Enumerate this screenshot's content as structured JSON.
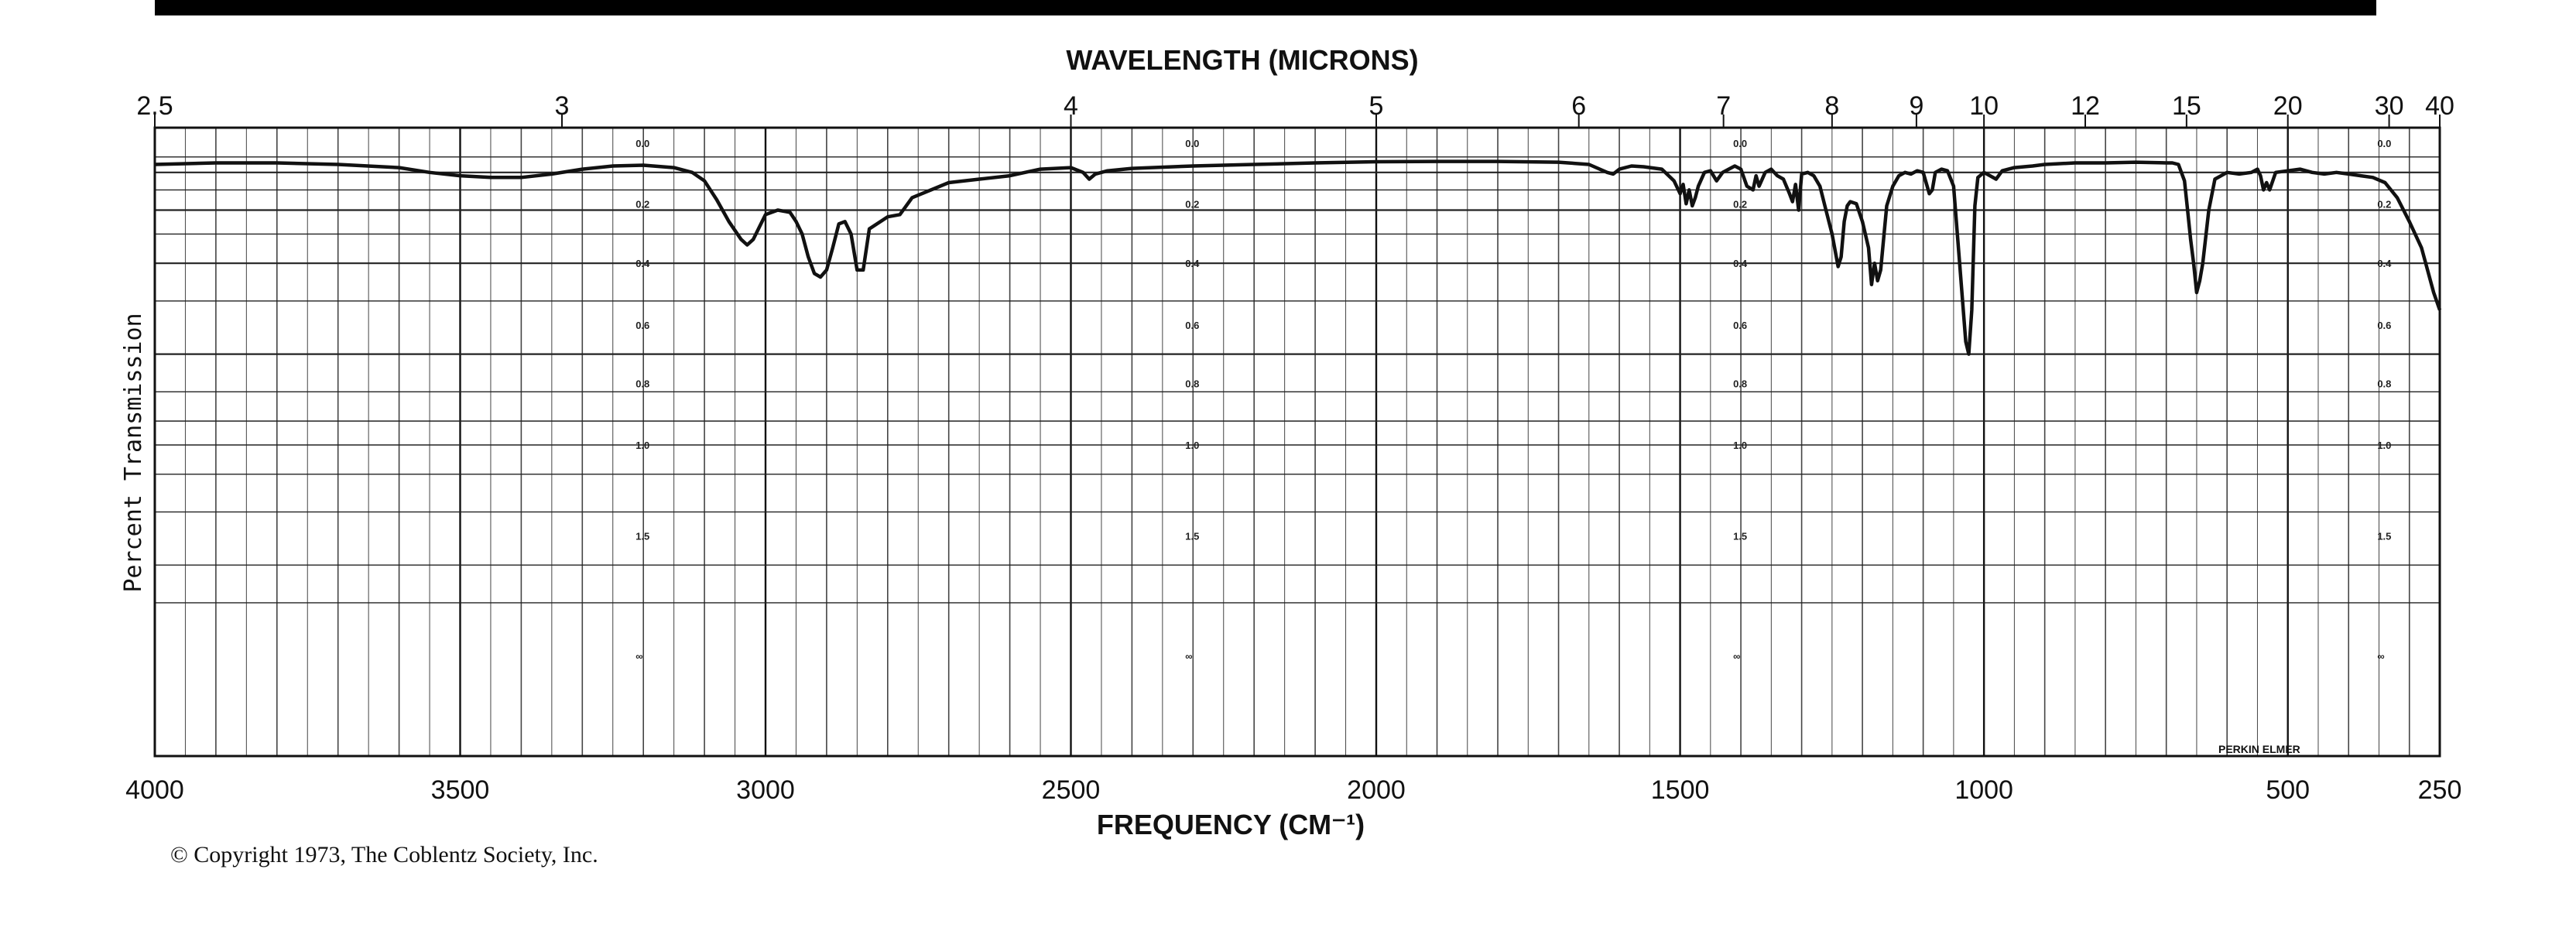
{
  "chart_data": {
    "type": "line",
    "title": "WAVELENGTH (MICRONS)",
    "xlabel": "FREQUENCY (CM⁻¹)",
    "ylabel": "Percent Transmission",
    "x_reversed": true,
    "frequency_ticks": [
      "4000",
      "3500",
      "3000",
      "2500",
      "2000",
      "1500",
      "1000",
      "500",
      "250"
    ],
    "wavelength_ticks": [
      "2.5",
      "3",
      "4",
      "5",
      "6",
      "7",
      "8",
      "9",
      "10",
      "12",
      "15",
      "20",
      "30",
      "40"
    ],
    "absorbance_ticks": [
      "0.0",
      "0.2",
      "0.4",
      "0.6",
      "0.8",
      "1.0",
      "1.5",
      "∞"
    ],
    "grid": true,
    "series": [
      {
        "x": [
          4000,
          3900,
          3800,
          3700,
          3600,
          3550,
          3500,
          3450,
          3400,
          3350,
          3300,
          3250,
          3200,
          3150,
          3120,
          3100,
          3080,
          3060,
          3040,
          3030,
          3020,
          3000,
          2980,
          2960,
          2950,
          2940,
          2930,
          2920,
          2910,
          2900,
          2890,
          2880,
          2870,
          2860,
          2850,
          2840,
          2830,
          2800,
          2780,
          2760,
          2700,
          2650,
          2600,
          2550,
          2500,
          2480,
          2470,
          2460,
          2440,
          2400,
          2300,
          2200,
          2100,
          2000,
          1900,
          1800,
          1700,
          1650,
          1620,
          1610,
          1600,
          1580,
          1560,
          1530,
          1510,
          1500,
          1495,
          1490,
          1485,
          1480,
          1475,
          1470,
          1460,
          1450,
          1440,
          1430,
          1420,
          1410,
          1400,
          1390,
          1380,
          1375,
          1370,
          1360,
          1350,
          1340,
          1330,
          1320,
          1315,
          1310,
          1305,
          1300,
          1290,
          1280,
          1270,
          1260,
          1250,
          1240,
          1235,
          1230,
          1225,
          1220,
          1210,
          1200,
          1190,
          1185,
          1180,
          1175,
          1170,
          1160,
          1150,
          1140,
          1130,
          1120,
          1110,
          1100,
          1090,
          1085,
          1080,
          1070,
          1060,
          1050,
          1040,
          1030,
          1025,
          1020,
          1015,
          1010,
          1000,
          990,
          980,
          970,
          950,
          920,
          900,
          850,
          800,
          750,
          700,
          690,
          680,
          670,
          665,
          660,
          655,
          650,
          645,
          640,
          630,
          620,
          600,
          580,
          560,
          550,
          545,
          540,
          535,
          530,
          520,
          500,
          480,
          460,
          440,
          420,
          400,
          380,
          360,
          340,
          320,
          300,
          280,
          260,
          250
        ],
        "y": [
          85,
          86,
          86,
          85,
          83,
          80,
          78,
          77,
          77,
          79,
          82,
          84,
          84.5,
          83,
          80,
          75,
          65,
          55,
          48,
          46,
          48,
          58,
          60,
          59,
          55,
          50,
          42,
          37,
          36,
          38,
          45,
          54,
          55,
          50,
          38,
          38,
          52,
          57,
          58,
          66,
          74,
          76,
          78,
          82,
          83,
          80,
          76,
          79,
          81,
          82.5,
          84,
          85,
          86,
          86.8,
          87,
          87,
          86.5,
          85,
          80,
          79,
          82,
          84,
          83.5,
          82,
          75,
          68,
          73,
          63,
          70,
          62,
          66,
          72,
          80,
          81,
          75,
          80,
          82,
          84,
          82,
          72,
          70,
          78,
          72,
          80,
          82,
          78,
          76,
          68,
          64,
          73,
          60,
          79,
          80,
          78,
          72,
          60,
          50,
          39,
          42,
          55,
          62,
          64,
          63,
          55,
          45,
          34,
          40,
          35,
          38,
          62,
          72,
          78,
          80,
          79,
          81,
          80,
          68,
          70,
          80,
          82,
          81,
          72,
          40,
          22,
          20,
          28,
          62,
          77,
          80,
          78,
          76,
          81,
          83,
          84,
          85,
          86,
          86,
          86.5,
          86,
          86,
          85,
          75,
          60,
          48,
          40,
          32,
          35,
          40,
          60,
          76,
          80,
          79,
          80,
          82,
          78,
          70,
          74,
          70,
          80,
          81,
          82,
          80,
          79,
          80,
          79,
          78,
          77,
          74,
          66,
          55,
          45,
          32,
          28
        ]
      }
    ]
  },
  "brand": "PERKIN ELMER",
  "copyright": "© Copyright 1973, The Coblentz Society, Inc."
}
